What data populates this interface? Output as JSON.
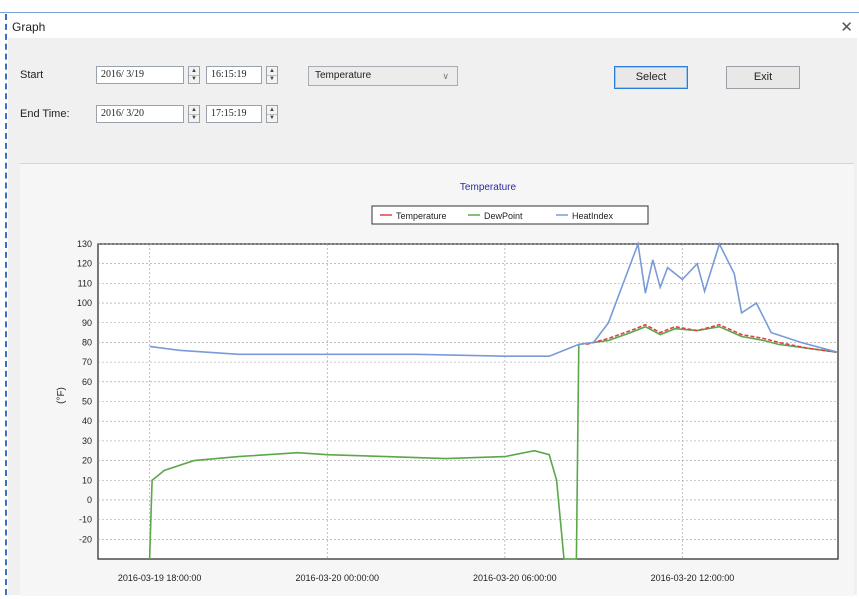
{
  "window": {
    "title": "Graph",
    "close_glyph": "✕"
  },
  "controls": {
    "start_label": "Start",
    "end_label": "End Time:",
    "start_date": "2016/ 3/19",
    "start_time": "16:15:19",
    "end_date": "2016/ 3/20",
    "end_time": "17:15:19",
    "measure_selected": "Temperature",
    "select_button": "Select",
    "exit_button": "Exit"
  },
  "chart_data": {
    "type": "line",
    "title": "Temperature",
    "ylabel": "(°F)",
    "xlabel": "",
    "ylim": [
      -30,
      130
    ],
    "xlim": [
      "2016-03-19 16:15:19",
      "2016-03-20 17:15:19"
    ],
    "grid": true,
    "legend_position": "top",
    "yticks": [
      130,
      120,
      110,
      100,
      90,
      80,
      70,
      60,
      50,
      40,
      30,
      20,
      10,
      0,
      -10,
      -20
    ],
    "xticks": [
      {
        "t": "2016-03-19 18:00",
        "label": "2016-03-19 18:00:00"
      },
      {
        "t": "2016-03-20 00:00",
        "label": "2016-03-20 00:00:00"
      },
      {
        "t": "2016-03-20 06:00",
        "label": "2016-03-20 06:00:00"
      },
      {
        "t": "2016-03-20 12:00",
        "label": "2016-03-20 12:00:00"
      }
    ],
    "series": [
      {
        "name": "Temperature",
        "color": "#e0404a",
        "points": [
          [
            "2016-03-20 08:45",
            79
          ],
          [
            "2016-03-20 09:30",
            82
          ],
          [
            "2016-03-20 10:15",
            86
          ],
          [
            "2016-03-20 10:45",
            89
          ],
          [
            "2016-03-20 11:15",
            85
          ],
          [
            "2016-03-20 11:45",
            88
          ],
          [
            "2016-03-20 12:30",
            86
          ],
          [
            "2016-03-20 13:15",
            89
          ],
          [
            "2016-03-20 14:00",
            84
          ],
          [
            "2016-03-20 14:45",
            82
          ],
          [
            "2016-03-20 15:15",
            80
          ],
          [
            "2016-03-20 16:15",
            77
          ],
          [
            "2016-03-20 17:15",
            75
          ]
        ]
      },
      {
        "name": "DewPoint",
        "color": "#5aa84a",
        "points": [
          [
            "2016-03-19 18:00",
            -30
          ],
          [
            "2016-03-19 18:05",
            10
          ],
          [
            "2016-03-19 18:30",
            15
          ],
          [
            "2016-03-19 19:30",
            20
          ],
          [
            "2016-03-19 21:00",
            22
          ],
          [
            "2016-03-19 23:00",
            24
          ],
          [
            "2016-03-20 00:00",
            23
          ],
          [
            "2016-03-20 02:00",
            22
          ],
          [
            "2016-03-20 04:00",
            21
          ],
          [
            "2016-03-20 06:00",
            22
          ],
          [
            "2016-03-20 07:00",
            25
          ],
          [
            "2016-03-20 07:30",
            23
          ],
          [
            "2016-03-20 07:45",
            10
          ],
          [
            "2016-03-20 08:00",
            -30
          ],
          [
            "2016-03-20 08:25",
            -30
          ],
          [
            "2016-03-20 08:30",
            79
          ],
          [
            "2016-03-20 09:30",
            81
          ],
          [
            "2016-03-20 10:15",
            85
          ],
          [
            "2016-03-20 10:45",
            88
          ],
          [
            "2016-03-20 11:15",
            84
          ],
          [
            "2016-03-20 11:45",
            87
          ],
          [
            "2016-03-20 12:30",
            86
          ],
          [
            "2016-03-20 13:15",
            88
          ],
          [
            "2016-03-20 14:00",
            83
          ],
          [
            "2016-03-20 14:45",
            81
          ],
          [
            "2016-03-20 15:15",
            79
          ],
          [
            "2016-03-20 16:15",
            77
          ],
          [
            "2016-03-20 17:15",
            75
          ]
        ]
      },
      {
        "name": "HeatIndex",
        "color": "#7a9ad8",
        "points": [
          [
            "2016-03-19 18:00",
            78
          ],
          [
            "2016-03-19 19:00",
            76
          ],
          [
            "2016-03-19 21:00",
            74
          ],
          [
            "2016-03-20 00:00",
            74
          ],
          [
            "2016-03-20 03:00",
            74
          ],
          [
            "2016-03-20 06:00",
            73
          ],
          [
            "2016-03-20 07:30",
            73
          ],
          [
            "2016-03-20 08:30",
            79
          ],
          [
            "2016-03-20 09:00",
            80
          ],
          [
            "2016-03-20 09:30",
            90
          ],
          [
            "2016-03-20 10:00",
            110
          ],
          [
            "2016-03-20 10:30",
            130
          ],
          [
            "2016-03-20 10:45",
            105
          ],
          [
            "2016-03-20 11:00",
            122
          ],
          [
            "2016-03-20 11:15",
            108
          ],
          [
            "2016-03-20 11:30",
            118
          ],
          [
            "2016-03-20 12:00",
            112
          ],
          [
            "2016-03-20 12:30",
            120
          ],
          [
            "2016-03-20 12:45",
            106
          ],
          [
            "2016-03-20 13:15",
            130
          ],
          [
            "2016-03-20 13:45",
            115
          ],
          [
            "2016-03-20 14:00",
            95
          ],
          [
            "2016-03-20 14:30",
            100
          ],
          [
            "2016-03-20 15:00",
            85
          ],
          [
            "2016-03-20 16:00",
            80
          ],
          [
            "2016-03-20 17:15",
            75
          ]
        ]
      }
    ]
  }
}
